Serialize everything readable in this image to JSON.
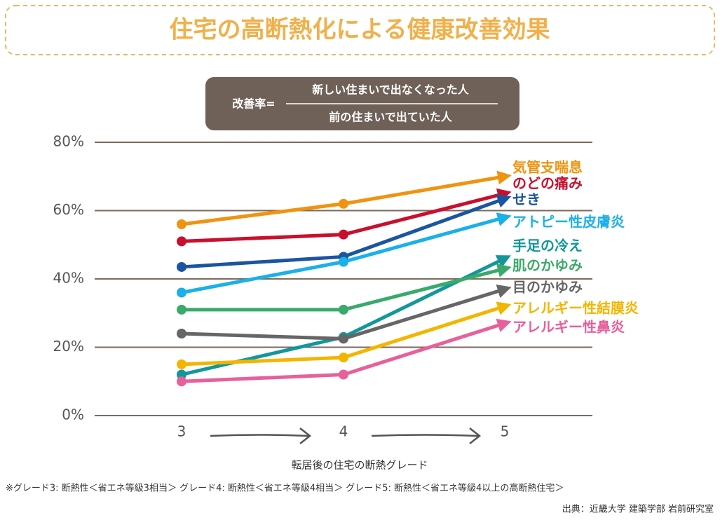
{
  "chart_data": {
    "type": "line",
    "title": "住宅の高断熱化による健康改善効果",
    "formula": {
      "left": "改善率=",
      "numerator": "新しい住まいで出なくなった人",
      "denominator": "前の住まいで出ていた人"
    },
    "categories": [
      "3",
      "4",
      "5"
    ],
    "x_label": "転居後の住宅の断熱グレード",
    "ylim": [
      0,
      80
    ],
    "yticks": [
      {
        "value": 0,
        "label": "0%"
      },
      {
        "value": 20,
        "label": "20%"
      },
      {
        "value": 40,
        "label": "40%"
      },
      {
        "value": 60,
        "label": "60%"
      },
      {
        "value": 80,
        "label": "80%"
      }
    ],
    "grid": true,
    "series": [
      {
        "name": "気管支喘息",
        "color": "#ef9410",
        "values": [
          56,
          62,
          70
        ]
      },
      {
        "name": "のどの痛み",
        "color": "#c8102e",
        "values": [
          51,
          53,
          65
        ]
      },
      {
        "name": "せき",
        "color": "#1a55a0",
        "values": [
          43.5,
          46.5,
          63.5
        ]
      },
      {
        "name": "アトピー性皮膚炎",
        "color": "#1bb0e8",
        "values": [
          36,
          45,
          58
        ]
      },
      {
        "name": "手足の冷え",
        "color": "#12979a",
        "values": [
          12,
          23,
          46
        ]
      },
      {
        "name": "肌のかゆみ",
        "color": "#3aaa6a",
        "values": [
          31,
          31,
          43
        ]
      },
      {
        "name": "目のかゆみ",
        "color": "#666666",
        "values": [
          24,
          22.5,
          37
        ]
      },
      {
        "name": "アレルギー性結膜炎",
        "color": "#f3b500",
        "values": [
          15,
          17,
          32
        ]
      },
      {
        "name": "アレルギー性鼻炎",
        "color": "#e8609a",
        "values": [
          10,
          12,
          27
        ]
      }
    ],
    "footnote": "※グレード3: 断熱性＜省エネ等級3相当＞ グレード4: 断熱性＜省エネ等級4相当＞ グレード5: 断熱性＜省エネ等級4以上の高断熱住宅＞",
    "source": "出典：近畿大学 建築学部 岩前研究室"
  }
}
